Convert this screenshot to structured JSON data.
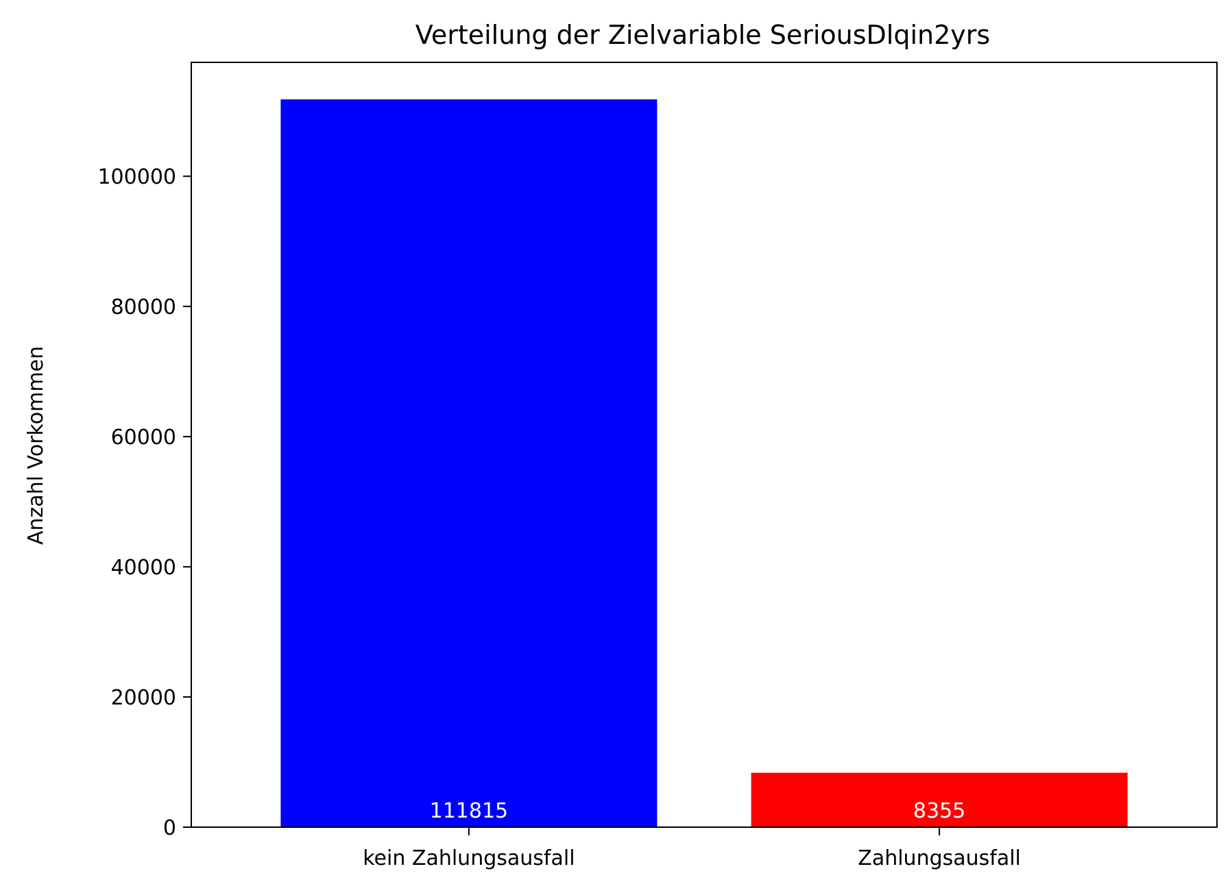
{
  "chart_data": {
    "type": "bar",
    "title": "Verteilung der Zielvariable SeriousDlqin2yrs",
    "xlabel": "",
    "ylabel": "Anzahl Vorkommen",
    "categories": [
      "kein Zahlungsausfall",
      "Zahlungsausfall"
    ],
    "values": [
      111815,
      8355
    ],
    "value_labels": [
      "111815",
      "8355"
    ],
    "colors": [
      "#0000ff",
      "#ff0000"
    ],
    "value_label_color": "#ffffff",
    "ylim": [
      0,
      117500
    ],
    "yticks": [
      0,
      20000,
      40000,
      60000,
      80000,
      100000
    ],
    "ytick_labels": [
      "0",
      "20000",
      "40000",
      "60000",
      "80000",
      "100000"
    ],
    "grid": false,
    "legend": "none"
  }
}
